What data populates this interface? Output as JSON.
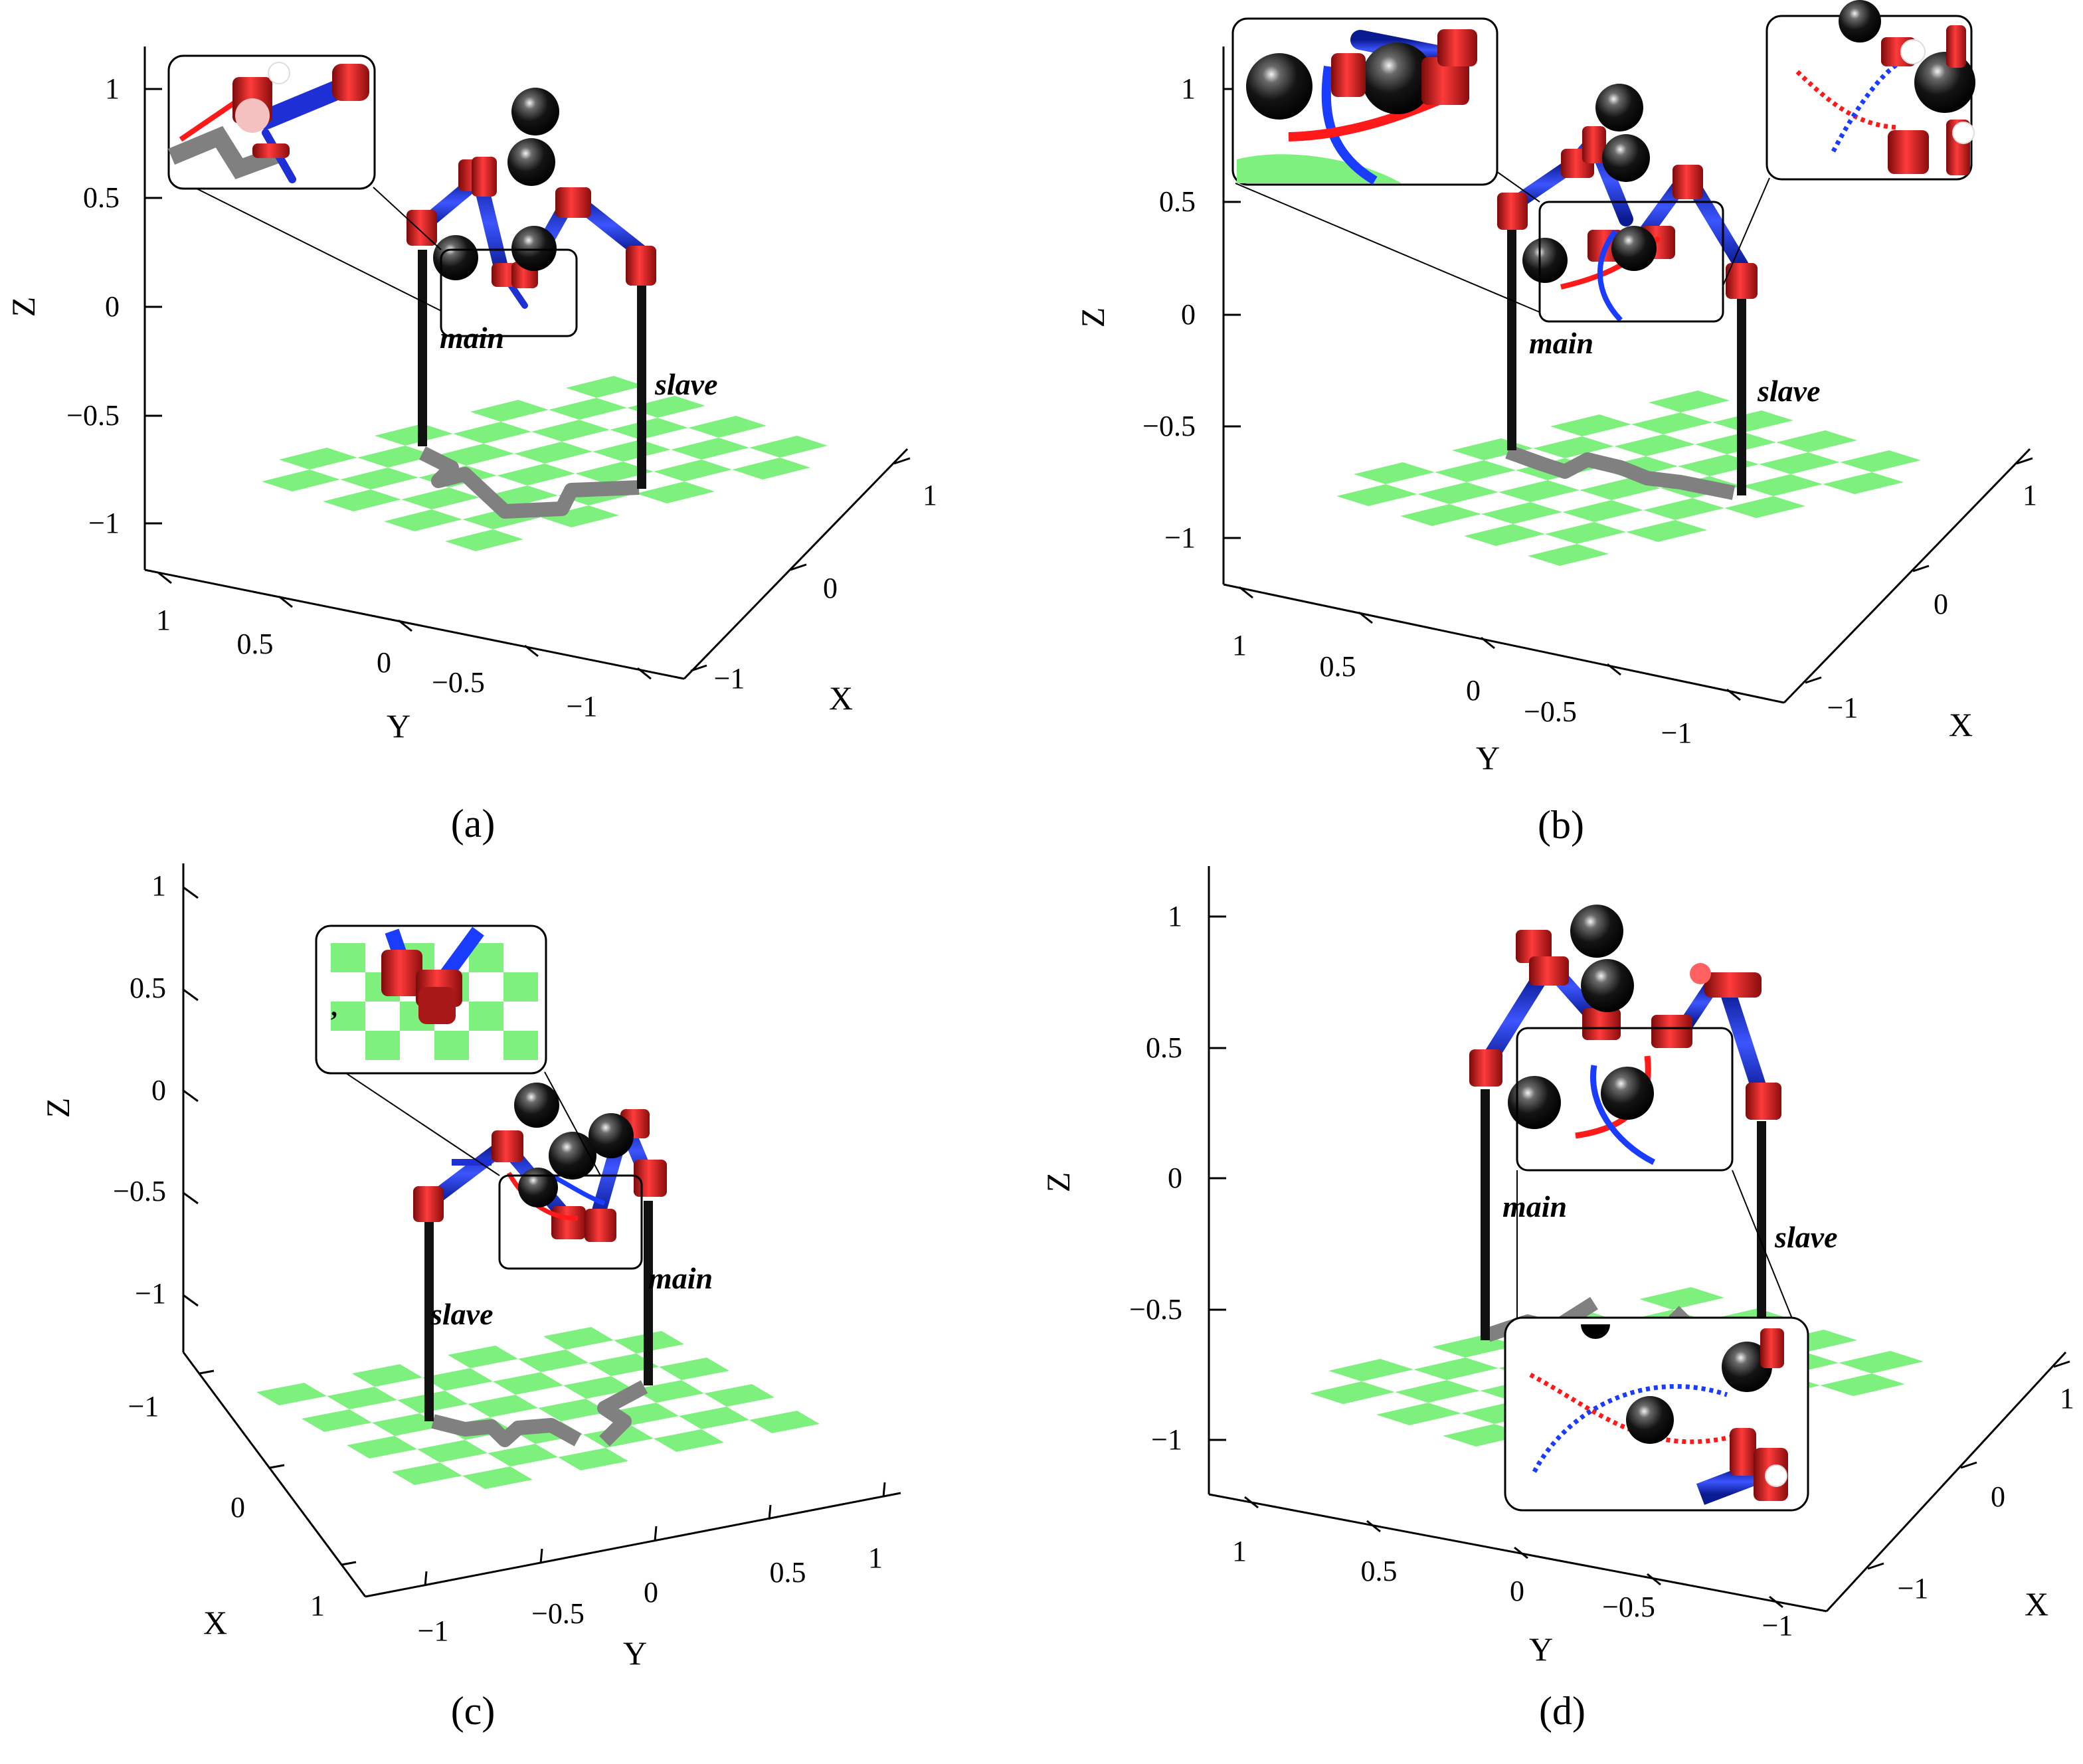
{
  "panels": [
    {
      "id": "a",
      "caption": "(a)",
      "axes": {
        "z_label": "Z",
        "y_label": "Y",
        "x_label": "X",
        "z_ticks": [
          "1",
          "0.5",
          "0",
          "−0.5",
          "−1"
        ],
        "y_ticks": [
          "1",
          "0.5",
          "0",
          "−0.5",
          "−1"
        ],
        "x_ticks": [
          "1",
          "0",
          "−1"
        ]
      },
      "labels": {
        "left_arm": "main",
        "right_arm": "slave"
      }
    },
    {
      "id": "b",
      "caption": "(b)",
      "axes": {
        "z_label": "Z",
        "y_label": "Y",
        "x_label": "X",
        "z_ticks": [
          "1",
          "0.5",
          "0",
          "−0.5",
          "−1"
        ],
        "y_ticks": [
          "1",
          "0.5",
          "0",
          "−0.5",
          "−1"
        ],
        "x_ticks": [
          "1",
          "0",
          "−1"
        ]
      },
      "labels": {
        "left_arm": "main",
        "right_arm": "slave"
      }
    },
    {
      "id": "c",
      "caption": "(c)",
      "axes": {
        "z_label": "Z",
        "y_label": "Y",
        "x_label": "X",
        "z_ticks": [
          "1",
          "0.5",
          "0",
          "−0.5",
          "−1"
        ],
        "y_ticks": [
          "−1",
          "−0.5",
          "0",
          "0.5",
          "1"
        ],
        "x_ticks": [
          "−1",
          "0",
          "1"
        ]
      },
      "labels": {
        "left_arm": "slave",
        "right_arm": "main"
      }
    },
    {
      "id": "d",
      "caption": "(d)",
      "axes": {
        "z_label": "Z",
        "y_label": "Y",
        "x_label": "X",
        "z_ticks": [
          "1",
          "0.5",
          "0",
          "−0.5",
          "−1"
        ],
        "y_ticks": [
          "1",
          "0.5",
          "0",
          "−0.5",
          "−1"
        ],
        "x_ticks": [
          "1",
          "0",
          "−1"
        ]
      },
      "labels": {
        "left_arm": "main",
        "right_arm": "slave"
      }
    }
  ],
  "colors": {
    "floor": "#7ef07e",
    "pillar": "#111111",
    "link": "#1f2fd6",
    "joint": "#d42020",
    "obstacle": "#0a0a0a",
    "path": "#808080",
    "traj_red": "#ff1a1a",
    "traj_blue": "#1a3cff"
  }
}
